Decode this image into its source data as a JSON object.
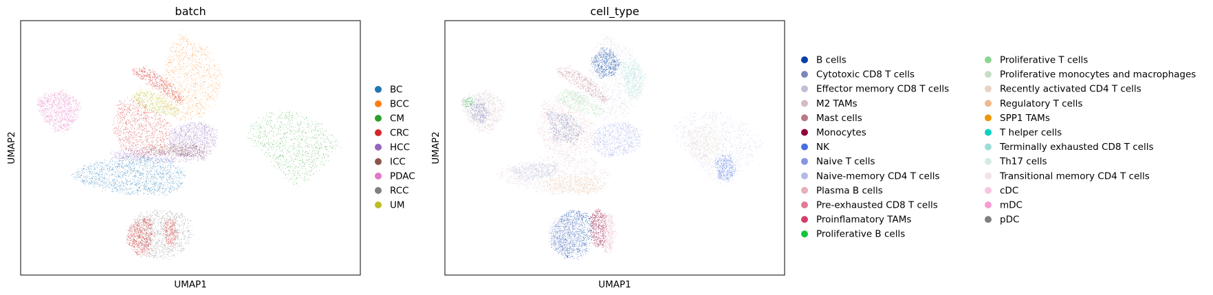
{
  "chart_data": [
    {
      "type": "scatter",
      "title": "batch",
      "xlabel": "UMAP1",
      "ylabel": "UMAP2",
      "grid": false,
      "legend_position": "right",
      "legend": [
        {
          "label": "BC",
          "color": "#1f77b4"
        },
        {
          "label": "BCC",
          "color": "#ff7f0e"
        },
        {
          "label": "CM",
          "color": "#2ca02c"
        },
        {
          "label": "CRC",
          "color": "#d62728"
        },
        {
          "label": "HCC",
          "color": "#9467bd"
        },
        {
          "label": "ICC",
          "color": "#8c564b"
        },
        {
          "label": "PDAC",
          "color": "#e377c2"
        },
        {
          "label": "RCC",
          "color": "#7f7f7f"
        },
        {
          "label": "UM",
          "color": "#bcbd22"
        }
      ]
    },
    {
      "type": "scatter",
      "title": "cell_type",
      "xlabel": "UMAP1",
      "ylabel": "UMAP2",
      "grid": false,
      "legend_position": "right",
      "legend": [
        {
          "label": "B cells",
          "color": "#023fa5"
        },
        {
          "label": "Cytotoxic CD8 T cells",
          "color": "#7d87b9"
        },
        {
          "label": "Effector memory CD8 T cells",
          "color": "#bec1d4"
        },
        {
          "label": "M2 TAMs",
          "color": "#d6bcc0"
        },
        {
          "label": "Mast cells",
          "color": "#bb7784"
        },
        {
          "label": "Monocytes",
          "color": "#8e063b"
        },
        {
          "label": "NK",
          "color": "#4a6fe3"
        },
        {
          "label": "Naive T cells",
          "color": "#8595e1"
        },
        {
          "label": "Naive-memory CD4 T cells",
          "color": "#b5bbe3"
        },
        {
          "label": "Plasma B cells",
          "color": "#e6afb9"
        },
        {
          "label": "Pre-exhausted CD8 T cells",
          "color": "#e07b91"
        },
        {
          "label": "Proinflamatory TAMs",
          "color": "#d33f6a"
        },
        {
          "label": "Proliferative B cells",
          "color": "#11c638"
        },
        {
          "label": "Proliferative T cells",
          "color": "#8dd593"
        },
        {
          "label": "Proliferative monocytes and macrophages",
          "color": "#c6dec7"
        },
        {
          "label": "Recently activated CD4 T cells",
          "color": "#ead3c6"
        },
        {
          "label": "Regulatory T cells",
          "color": "#f0b98d"
        },
        {
          "label": "SPP1 TAMs",
          "color": "#ef9708"
        },
        {
          "label": "T helper cells",
          "color": "#0fcfc0"
        },
        {
          "label": "Terminally exhausted CD8 T cells",
          "color": "#9cded6"
        },
        {
          "label": "Th17 cells",
          "color": "#d5eae7"
        },
        {
          "label": "Transitional memory CD4 T cells",
          "color": "#f3e1eb"
        },
        {
          "label": "cDC",
          "color": "#f6c4e1"
        },
        {
          "label": "mDC",
          "color": "#f79cd4"
        },
        {
          "label": "pDC",
          "color": "#7f7f7f"
        }
      ]
    }
  ]
}
